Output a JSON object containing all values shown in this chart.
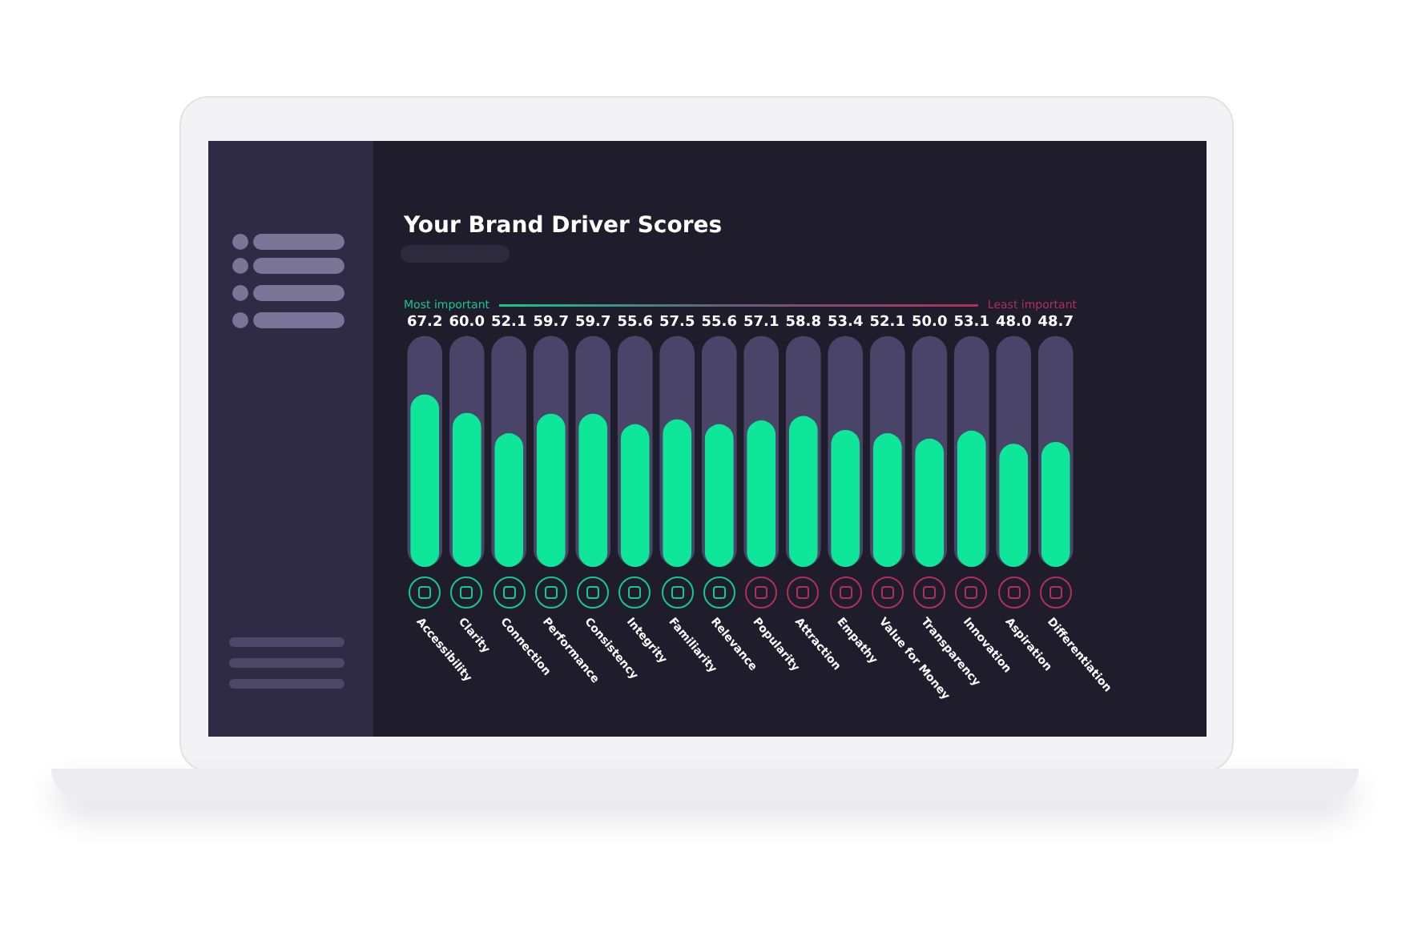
{
  "chart_data": {
    "type": "bar",
    "title": "Your Brand Driver Scores",
    "categories": [
      "Accessibility",
      "Clarity",
      "Connection",
      "Performance",
      "Consistency",
      "Integrity",
      "Familiarity",
      "Relevance",
      "Popularity",
      "Attraction",
      "Empathy",
      "Value for Money",
      "Transparency",
      "Innovation",
      "Aspiration",
      "Differentiation"
    ],
    "values": [
      67.2,
      60.0,
      52.1,
      59.7,
      59.7,
      55.6,
      57.5,
      55.6,
      57.1,
      58.8,
      53.4,
      52.1,
      50.0,
      53.1,
      48.0,
      48.7
    ],
    "value_labels": [
      "67.2",
      "60.0",
      "52.1",
      "59.7",
      "59.7",
      "55.6",
      "57.5",
      "55.6",
      "57.1",
      "58.8",
      "53.4",
      "52.1",
      "50.0",
      "53.1",
      "48.0",
      "48.7"
    ],
    "color": "#0ee69a",
    "tick_labels": "x",
    "annotations": [
      "Most important",
      "Least important"
    ]
  }
}
